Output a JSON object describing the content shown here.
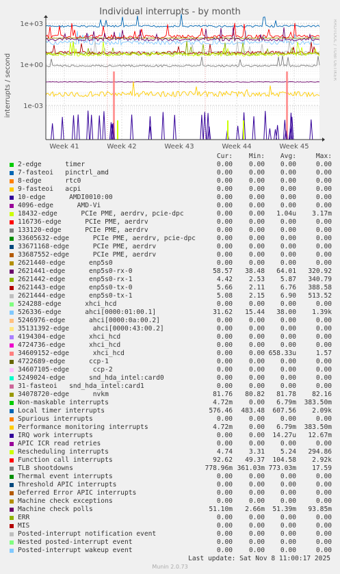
{
  "chart_data": {
    "type": "line",
    "title": "Individual interrupts - by month",
    "ylabel": "interrupts / second",
    "side_label": "RRDTOOL / TOBI OETIKER",
    "yscale": "log",
    "yticks": [
      "1e+03",
      "1e+00",
      "1e-03"
    ],
    "xticks": [
      "Week 41",
      "Week 42",
      "Week 43",
      "Week 44",
      "Week 45"
    ],
    "columns": [
      "Cur:",
      "Min:",
      "Avg:",
      "Max:"
    ],
    "series": [
      {
        "name": "2-edge      timer",
        "color": "#00cc00",
        "cur": "0.00",
        "min": "0.00",
        "avg": "0.00",
        "max": "0.00"
      },
      {
        "name": "7-fasteoi   pinctrl_amd",
        "color": "#0066b3",
        "cur": "0.00",
        "min": "0.00",
        "avg": "0.00",
        "max": "0.00"
      },
      {
        "name": "8-edge      rtc0",
        "color": "#ff8000",
        "cur": "0.00",
        "min": "0.00",
        "avg": "0.00",
        "max": "0.00"
      },
      {
        "name": "9-fasteoi   acpi",
        "color": "#ffcc00",
        "cur": "0.00",
        "min": "0.00",
        "avg": "0.00",
        "max": "0.00"
      },
      {
        "name": "10-edge      AMDI0010:00",
        "color": "#330099",
        "cur": "0.00",
        "min": "0.00",
        "avg": "0.00",
        "max": "0.00"
      },
      {
        "name": "4096-edge      AMD-Vi",
        "color": "#990099",
        "cur": "0.00",
        "min": "0.00",
        "avg": "0.00",
        "max": "0.00"
      },
      {
        "name": "18432-edge      PCIe PME, aerdrv, pcie-dpc",
        "color": "#ccff00",
        "cur": "0.00",
        "min": "0.00",
        "avg": "1.04u",
        "max": "3.17m"
      },
      {
        "name": "116736-edge      PCIe PME, aerdrv",
        "color": "#ff0000",
        "cur": "0.00",
        "min": "0.00",
        "avg": "0.00",
        "max": "0.00"
      },
      {
        "name": "133120-edge      PCIe PME, aerdrv",
        "color": "#808080",
        "cur": "0.00",
        "min": "0.00",
        "avg": "0.00",
        "max": "0.00"
      },
      {
        "name": "33605632-edge      PCIe PME, aerdrv, pcie-dpc",
        "color": "#008f00",
        "cur": "0.00",
        "min": "0.00",
        "avg": "0.00",
        "max": "0.00"
      },
      {
        "name": "33671168-edge      PCIe PME, aerdrv",
        "color": "#00487d",
        "cur": "0.00",
        "min": "0.00",
        "avg": "0.00",
        "max": "0.00"
      },
      {
        "name": "33687552-edge      PCIe PME, aerdrv",
        "color": "#b35a00",
        "cur": "0.00",
        "min": "0.00",
        "avg": "0.00",
        "max": "0.00"
      },
      {
        "name": "2621440-edge      enp5s0",
        "color": "#b38f00",
        "cur": "0.00",
        "min": "0.00",
        "avg": "0.00",
        "max": "0.00"
      },
      {
        "name": "2621441-edge      enp5s0-rx-0",
        "color": "#6b006b",
        "cur": "58.57",
        "min": "38.48",
        "avg": "64.01",
        "max": "320.92"
      },
      {
        "name": "2621442-edge      enp5s0-rx-1",
        "color": "#8fb300",
        "cur": "4.42",
        "min": "2.53",
        "avg": "5.87",
        "max": "340.79"
      },
      {
        "name": "2621443-edge      enp5s0-tx-0",
        "color": "#b30000",
        "cur": "5.66",
        "min": "2.11",
        "avg": "6.76",
        "max": "388.58"
      },
      {
        "name": "2621444-edge      enp5s0-tx-1",
        "color": "#bebebe",
        "cur": "5.08",
        "min": "2.15",
        "avg": "6.90",
        "max": "513.52"
      },
      {
        "name": "524288-edge      xhci_hcd",
        "color": "#80ff80",
        "cur": "0.00",
        "min": "0.00",
        "avg": "0.00",
        "max": "0.00"
      },
      {
        "name": "526336-edge      ahci[0000:01:00.1]",
        "color": "#80c9ff",
        "cur": "31.62",
        "min": "15.44",
        "avg": "38.00",
        "max": "1.39k"
      },
      {
        "name": "5246976-edge      ahci[0000:0a:00.2]",
        "color": "#ffc080",
        "cur": "0.00",
        "min": "0.00",
        "avg": "0.00",
        "max": "0.00"
      },
      {
        "name": "35131392-edge      ahci[0000:43:00.2]",
        "color": "#ffe680",
        "cur": "0.00",
        "min": "0.00",
        "avg": "0.00",
        "max": "0.00"
      },
      {
        "name": "4194304-edge      xhci_hcd",
        "color": "#aa80ff",
        "cur": "0.00",
        "min": "0.00",
        "avg": "0.00",
        "max": "0.00"
      },
      {
        "name": "4724736-edge      xhci_hcd",
        "color": "#ee00cc",
        "cur": "0.00",
        "min": "0.00",
        "avg": "0.00",
        "max": "0.00"
      },
      {
        "name": "34609152-edge      xhci_hcd",
        "color": "#ff8080",
        "cur": "0.00",
        "min": "0.00",
        "avg": "658.33u",
        "max": "1.57"
      },
      {
        "name": "4722689-edge      ccp-1",
        "color": "#666600",
        "cur": "0.00",
        "min": "0.00",
        "avg": "0.00",
        "max": "0.00"
      },
      {
        "name": "34607105-edge      ccp-2",
        "color": "#ffbfff",
        "cur": "0.00",
        "min": "0.00",
        "avg": "0.00",
        "max": "0.00"
      },
      {
        "name": "5249024-edge      snd_hda_intel:card0",
        "color": "#00ffcc",
        "cur": "0.00",
        "min": "0.00",
        "avg": "0.00",
        "max": "0.00"
      },
      {
        "name": "31-fasteoi   snd_hda_intel:card1",
        "color": "#cc6699",
        "cur": "0.00",
        "min": "0.00",
        "avg": "0.00",
        "max": "0.00"
      },
      {
        "name": "34078720-edge      nvkm",
        "color": "#999900",
        "cur": "81.76",
        "min": "80.82",
        "avg": "81.78",
        "max": "82.16"
      },
      {
        "name": "Non-maskable interrupts",
        "color": "#00cc00",
        "cur": "4.72m",
        "min": "0.00",
        "avg": "6.79m",
        "max": "383.50m"
      },
      {
        "name": "Local timer interrupts",
        "color": "#0066b3",
        "cur": "576.46",
        "min": "483.48",
        "avg": "607.56",
        "max": "2.09k"
      },
      {
        "name": "Spurious interrupts",
        "color": "#ff8000",
        "cur": "0.00",
        "min": "0.00",
        "avg": "0.00",
        "max": "0.00"
      },
      {
        "name": "Performance monitoring interrupts",
        "color": "#ffcc00",
        "cur": "4.72m",
        "min": "0.00",
        "avg": "6.79m",
        "max": "383.50m"
      },
      {
        "name": "IRQ work interrupts",
        "color": "#330099",
        "cur": "0.00",
        "min": "0.00",
        "avg": "14.27u",
        "max": "12.67m"
      },
      {
        "name": "APIC ICR read retries",
        "color": "#990099",
        "cur": "0.00",
        "min": "0.00",
        "avg": "0.00",
        "max": "0.00"
      },
      {
        "name": "Rescheduling interrupts",
        "color": "#ccff00",
        "cur": "4.74",
        "min": "3.31",
        "avg": "5.24",
        "max": "294.86"
      },
      {
        "name": "Function call interrupts",
        "color": "#ff0000",
        "cur": "92.62",
        "min": "49.37",
        "avg": "104.58",
        "max": "2.92k"
      },
      {
        "name": "TLB shootdowns",
        "color": "#808080",
        "cur": "778.96m",
        "min": "361.03m",
        "avg": "773.03m",
        "max": "17.59"
      },
      {
        "name": "Thermal event interrupts",
        "color": "#008f00",
        "cur": "0.00",
        "min": "0.00",
        "avg": "0.00",
        "max": "0.00"
      },
      {
        "name": "Threshold APIC interrupts",
        "color": "#00487d",
        "cur": "0.00",
        "min": "0.00",
        "avg": "0.00",
        "max": "0.00"
      },
      {
        "name": "Deferred Error APIC interrupts",
        "color": "#b35a00",
        "cur": "0.00",
        "min": "0.00",
        "avg": "0.00",
        "max": "0.00"
      },
      {
        "name": "Machine check exceptions",
        "color": "#b38f00",
        "cur": "0.00",
        "min": "0.00",
        "avg": "0.00",
        "max": "0.00"
      },
      {
        "name": "Machine check polls",
        "color": "#6b006b",
        "cur": "51.10m",
        "min": "2.66m",
        "avg": "51.39m",
        "max": "93.85m"
      },
      {
        "name": "ERR",
        "color": "#8fb300",
        "cur": "0.00",
        "min": "0.00",
        "avg": "0.00",
        "max": "0.00"
      },
      {
        "name": "MIS",
        "color": "#b30000",
        "cur": "0.00",
        "min": "0.00",
        "avg": "0.00",
        "max": "0.00"
      },
      {
        "name": "Posted-interrupt notification event",
        "color": "#bebebe",
        "cur": "0.00",
        "min": "0.00",
        "avg": "0.00",
        "max": "0.00"
      },
      {
        "name": "Nested posted-interrupt event",
        "color": "#80ff80",
        "cur": "0.00",
        "min": "0.00",
        "avg": "0.00",
        "max": "0.00"
      },
      {
        "name": "Posted-interrupt wakeup event",
        "color": "#80c9ff",
        "cur": "0.00",
        "min": "0.00",
        "avg": "0.00",
        "max": "0.00"
      }
    ]
  },
  "last_update": "Last update: Sat Nov  8 11:00:17 2025",
  "footer": "Munin 2.0.73"
}
